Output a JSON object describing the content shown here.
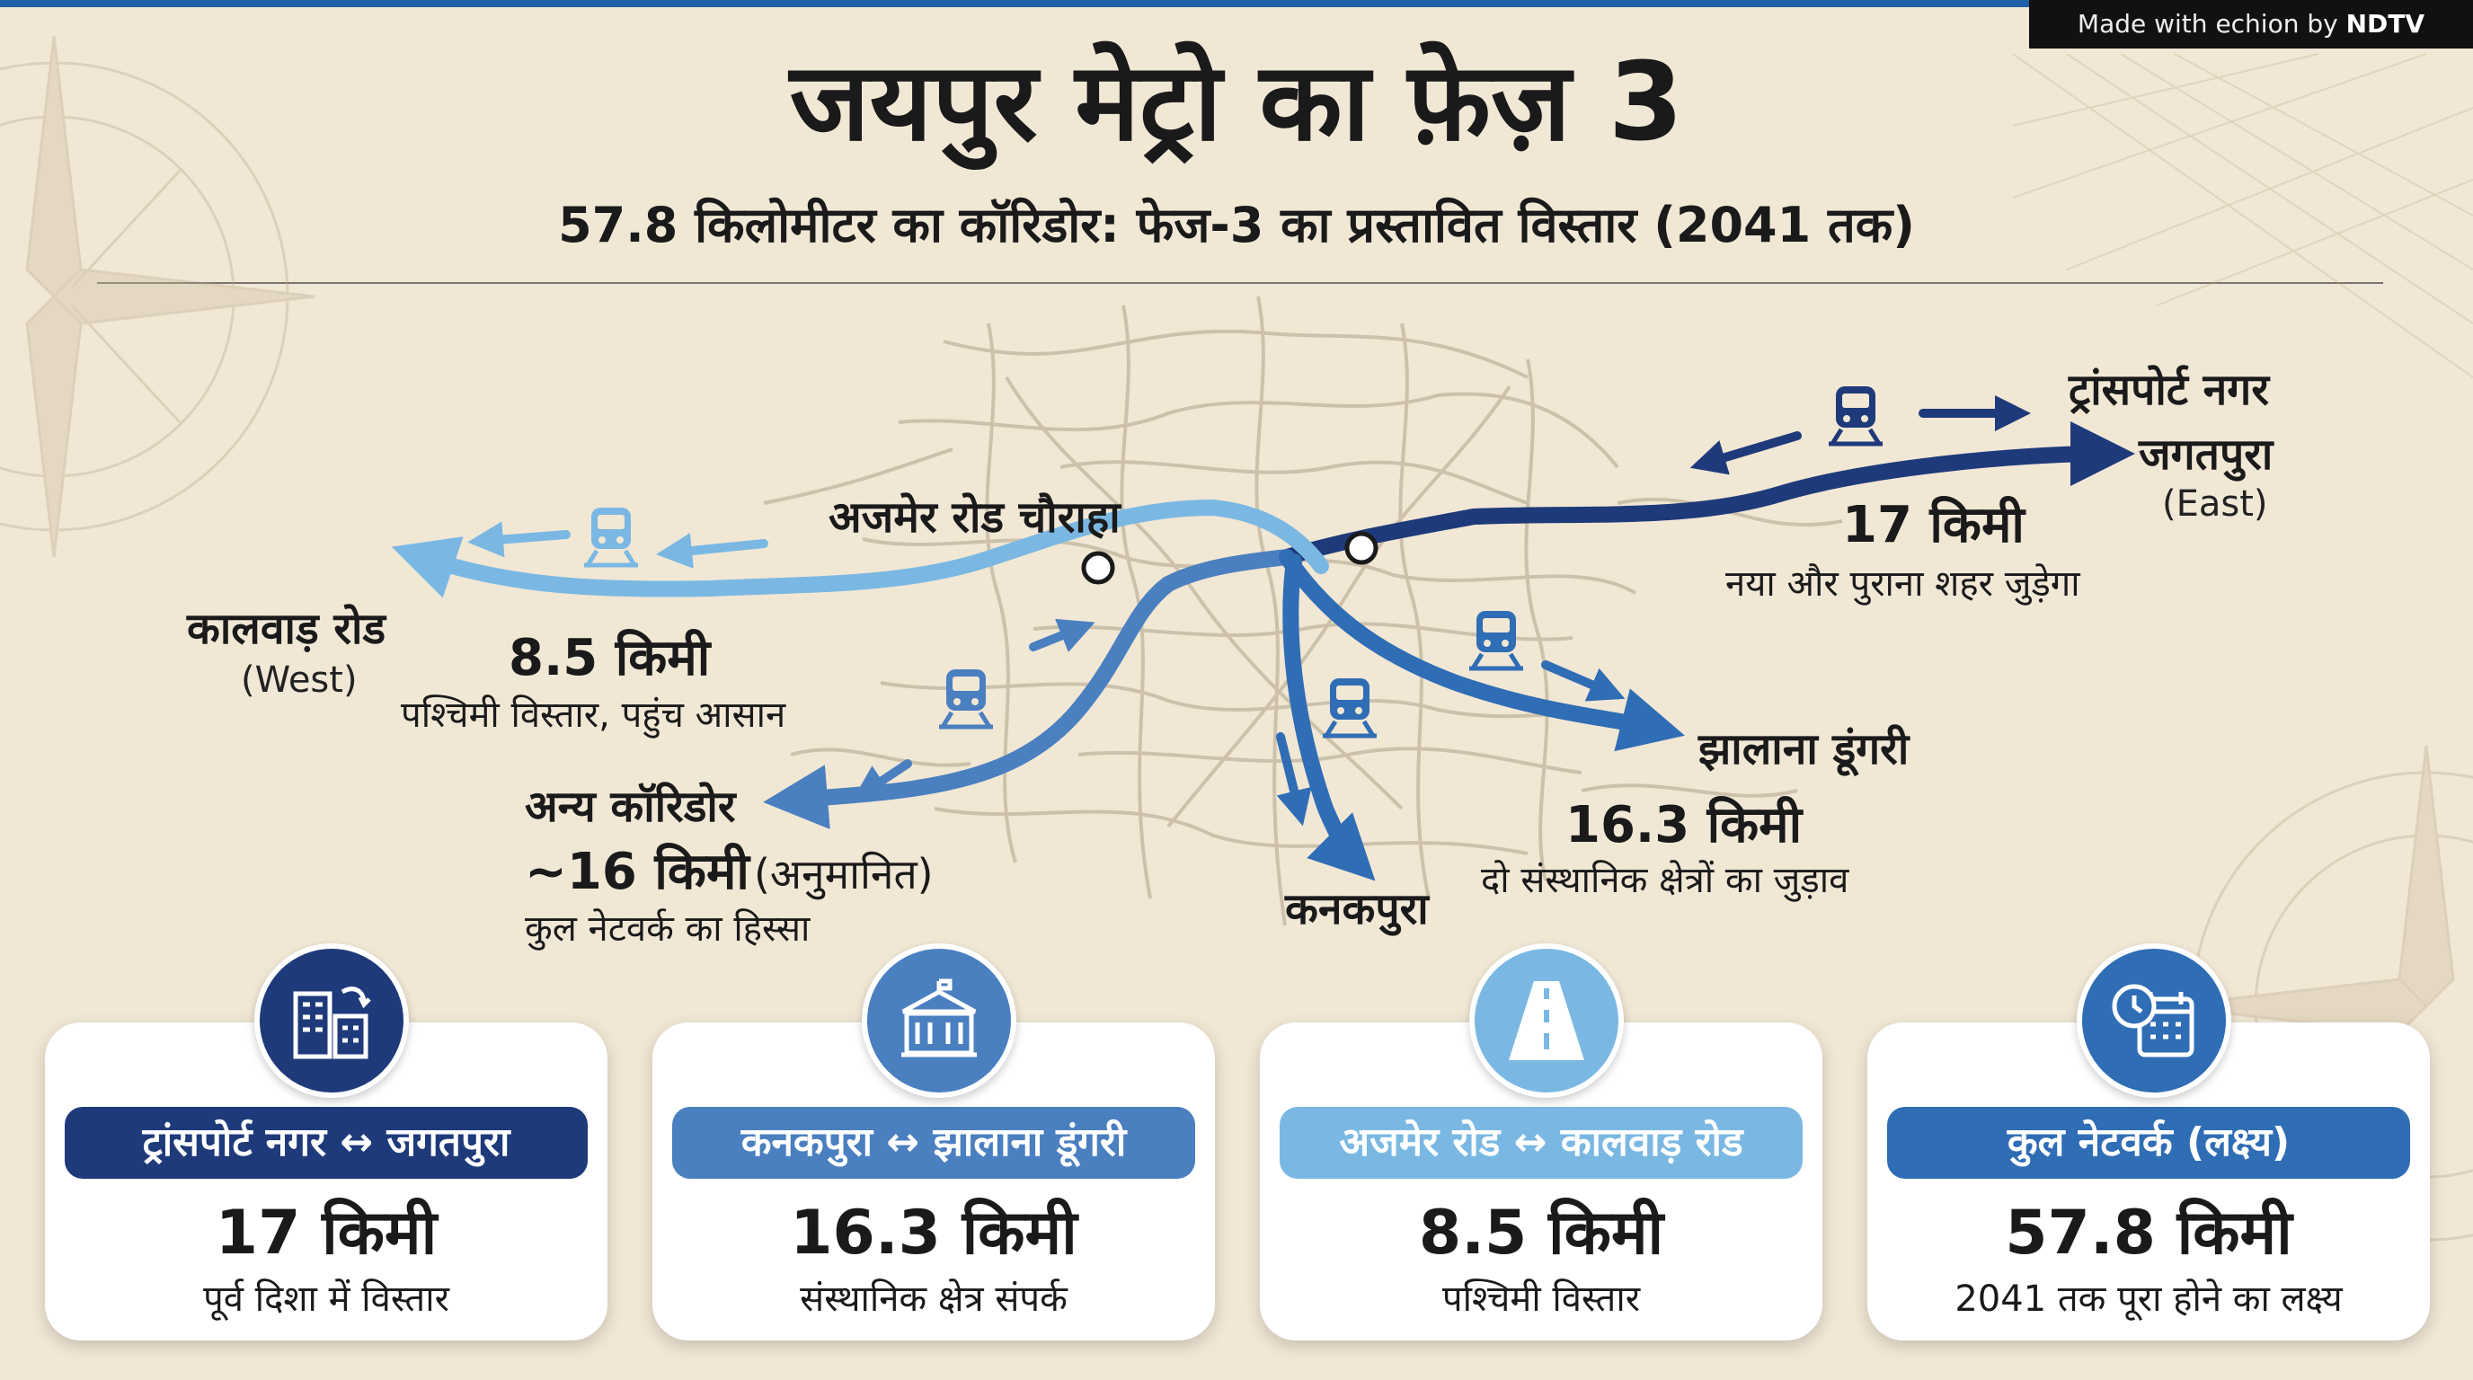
{
  "watermark": {
    "prefix": "Made with",
    "brand": "echion",
    "by": "by",
    "publisher": "NDTV"
  },
  "header": {
    "title": "जयपुर मेट्रो का फ़ेज़ 3",
    "subtitle": "57.8 किलोमीटर का कॉरिडोर: फेज-3 का प्रस्तावित विस्तार (2041 तक)"
  },
  "map": {
    "center_label": "अजमेर रोड चौराहा",
    "east": {
      "place1": "ट्रांसपोर्ट नगर",
      "place2": "जगतपुरा",
      "direction": "(East)",
      "distance": "17 किमी",
      "description": "नया और पुराना शहर जुड़ेगा"
    },
    "west": {
      "place": "कालवाड़ रोड",
      "direction": "(West)",
      "distance": "8.5 किमी",
      "description": "पश्चिमी विस्तार, पहुंच आसान"
    },
    "southeast": {
      "place": "झालाना डूंगरी",
      "distance": "16.3 किमी",
      "description": "दो संस्थानिक क्षेत्रों का जुड़ाव"
    },
    "south": {
      "place": "कनकपुरा"
    },
    "southwest": {
      "place": "अन्य कॉरिडोर",
      "distance": "~16 किमी",
      "note": "(अनुमानित)",
      "description": "कुल नेटवर्क का हिस्सा"
    }
  },
  "colors": {
    "dark_navy": "#1e3a7a",
    "blue": "#2f6db5",
    "light_blue": "#7ab8e3",
    "mid_blue": "#4a7fc0"
  },
  "cards": [
    {
      "route": "ट्रांसपोर्ट नगर ↔ जगतपुरा",
      "distance": "17 किमी",
      "description": "पूर्व दिशा में विस्तार",
      "icon": "buildings-icon",
      "color": "#1e3a7a"
    },
    {
      "route": "कनकपुरा ↔ झालाना डूंगरी",
      "distance": "16.3 किमी",
      "description": "संस्थानिक क्षेत्र संपर्क",
      "icon": "institution-icon",
      "color": "#4a7fc0"
    },
    {
      "route": "अजमेर रोड ↔ कालवाड़ रोड",
      "distance": "8.5 किमी",
      "description": "पश्चिमी विस्तार",
      "icon": "road-icon",
      "color": "#7ab8e3"
    },
    {
      "route": "कुल नेटवर्क (लक्ष्य)",
      "distance": "57.8 किमी",
      "description": "2041 तक पूरा होने का लक्ष्य",
      "icon": "calendar-clock-icon",
      "color": "#2f6db5"
    }
  ]
}
